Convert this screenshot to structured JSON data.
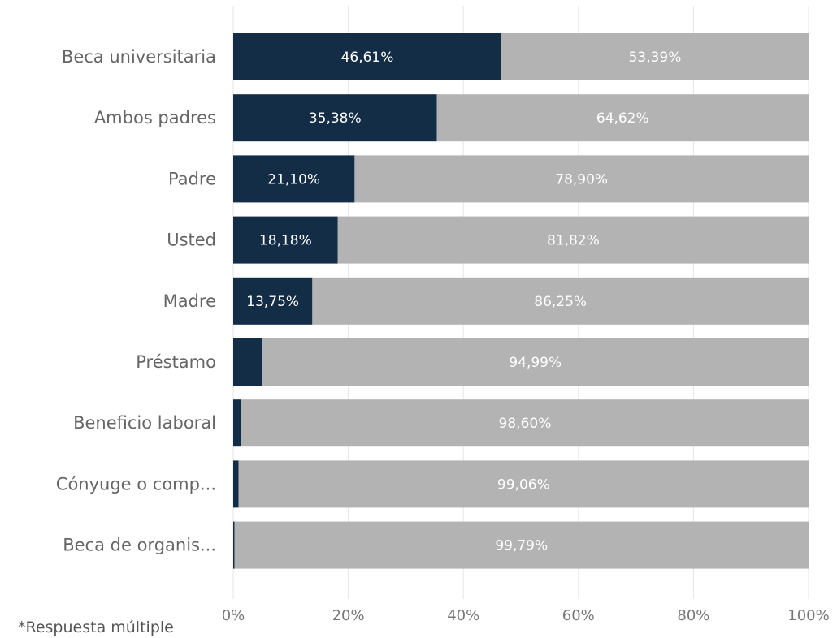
{
  "chart_data": {
    "type": "bar",
    "orientation": "horizontal",
    "stacked": true,
    "categories": [
      "Beca universitaria",
      "Ambos padres",
      "Padre",
      "Usted",
      "Madre",
      "Préstamo",
      "Beneficio laboral",
      "Cónyuge o comp...",
      "Beca de organis..."
    ],
    "series": [
      {
        "color": "#132d46",
        "values": [
          46.61,
          35.38,
          21.1,
          18.18,
          13.75,
          5.01,
          1.4,
          0.94,
          0.21
        ],
        "labels": [
          "46,61%",
          "35,38%",
          "21,10%",
          "18,18%",
          "13,75%",
          "",
          "",
          "",
          ""
        ]
      },
      {
        "color": "#b3b3b3",
        "values": [
          53.39,
          64.62,
          78.9,
          81.82,
          86.25,
          94.99,
          98.6,
          99.06,
          99.79
        ],
        "labels": [
          "53,39%",
          "64,62%",
          "78,90%",
          "81,82%",
          "86,25%",
          "94,99%",
          "98,60%",
          "99,06%",
          "99,79%"
        ]
      }
    ],
    "xlim": [
      0,
      100
    ],
    "xticks": [
      "0%",
      "20%",
      "40%",
      "60%",
      "80%",
      "100%"
    ],
    "grid": true,
    "footnote": "*Respuesta múltiple"
  }
}
